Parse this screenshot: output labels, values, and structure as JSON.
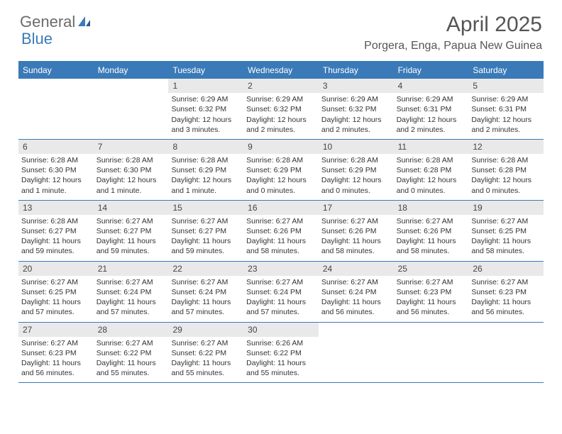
{
  "brand": {
    "text_a": "General",
    "text_b": "Blue"
  },
  "title": "April 2025",
  "location": "Porgera, Enga, Papua New Guinea",
  "colors": {
    "accent": "#3a7ab8",
    "header_text": "#ffffff",
    "day_bar_bg": "#e9e9e9",
    "text": "#333333",
    "title_color": "#555555"
  },
  "day_names": [
    "Sunday",
    "Monday",
    "Tuesday",
    "Wednesday",
    "Thursday",
    "Friday",
    "Saturday"
  ],
  "weeks": [
    [
      {
        "n": "",
        "empty": true
      },
      {
        "n": "",
        "empty": true
      },
      {
        "n": "1",
        "sunrise": "6:29 AM",
        "sunset": "6:32 PM",
        "daylight": "12 hours and 3 minutes."
      },
      {
        "n": "2",
        "sunrise": "6:29 AM",
        "sunset": "6:32 PM",
        "daylight": "12 hours and 2 minutes."
      },
      {
        "n": "3",
        "sunrise": "6:29 AM",
        "sunset": "6:32 PM",
        "daylight": "12 hours and 2 minutes."
      },
      {
        "n": "4",
        "sunrise": "6:29 AM",
        "sunset": "6:31 PM",
        "daylight": "12 hours and 2 minutes."
      },
      {
        "n": "5",
        "sunrise": "6:29 AM",
        "sunset": "6:31 PM",
        "daylight": "12 hours and 2 minutes."
      }
    ],
    [
      {
        "n": "6",
        "sunrise": "6:28 AM",
        "sunset": "6:30 PM",
        "daylight": "12 hours and 1 minute."
      },
      {
        "n": "7",
        "sunrise": "6:28 AM",
        "sunset": "6:30 PM",
        "daylight": "12 hours and 1 minute."
      },
      {
        "n": "8",
        "sunrise": "6:28 AM",
        "sunset": "6:29 PM",
        "daylight": "12 hours and 1 minute."
      },
      {
        "n": "9",
        "sunrise": "6:28 AM",
        "sunset": "6:29 PM",
        "daylight": "12 hours and 0 minutes."
      },
      {
        "n": "10",
        "sunrise": "6:28 AM",
        "sunset": "6:29 PM",
        "daylight": "12 hours and 0 minutes."
      },
      {
        "n": "11",
        "sunrise": "6:28 AM",
        "sunset": "6:28 PM",
        "daylight": "12 hours and 0 minutes."
      },
      {
        "n": "12",
        "sunrise": "6:28 AM",
        "sunset": "6:28 PM",
        "daylight": "12 hours and 0 minutes."
      }
    ],
    [
      {
        "n": "13",
        "sunrise": "6:28 AM",
        "sunset": "6:27 PM",
        "daylight": "11 hours and 59 minutes."
      },
      {
        "n": "14",
        "sunrise": "6:27 AM",
        "sunset": "6:27 PM",
        "daylight": "11 hours and 59 minutes."
      },
      {
        "n": "15",
        "sunrise": "6:27 AM",
        "sunset": "6:27 PM",
        "daylight": "11 hours and 59 minutes."
      },
      {
        "n": "16",
        "sunrise": "6:27 AM",
        "sunset": "6:26 PM",
        "daylight": "11 hours and 58 minutes."
      },
      {
        "n": "17",
        "sunrise": "6:27 AM",
        "sunset": "6:26 PM",
        "daylight": "11 hours and 58 minutes."
      },
      {
        "n": "18",
        "sunrise": "6:27 AM",
        "sunset": "6:26 PM",
        "daylight": "11 hours and 58 minutes."
      },
      {
        "n": "19",
        "sunrise": "6:27 AM",
        "sunset": "6:25 PM",
        "daylight": "11 hours and 58 minutes."
      }
    ],
    [
      {
        "n": "20",
        "sunrise": "6:27 AM",
        "sunset": "6:25 PM",
        "daylight": "11 hours and 57 minutes."
      },
      {
        "n": "21",
        "sunrise": "6:27 AM",
        "sunset": "6:24 PM",
        "daylight": "11 hours and 57 minutes."
      },
      {
        "n": "22",
        "sunrise": "6:27 AM",
        "sunset": "6:24 PM",
        "daylight": "11 hours and 57 minutes."
      },
      {
        "n": "23",
        "sunrise": "6:27 AM",
        "sunset": "6:24 PM",
        "daylight": "11 hours and 57 minutes."
      },
      {
        "n": "24",
        "sunrise": "6:27 AM",
        "sunset": "6:24 PM",
        "daylight": "11 hours and 56 minutes."
      },
      {
        "n": "25",
        "sunrise": "6:27 AM",
        "sunset": "6:23 PM",
        "daylight": "11 hours and 56 minutes."
      },
      {
        "n": "26",
        "sunrise": "6:27 AM",
        "sunset": "6:23 PM",
        "daylight": "11 hours and 56 minutes."
      }
    ],
    [
      {
        "n": "27",
        "sunrise": "6:27 AM",
        "sunset": "6:23 PM",
        "daylight": "11 hours and 56 minutes."
      },
      {
        "n": "28",
        "sunrise": "6:27 AM",
        "sunset": "6:22 PM",
        "daylight": "11 hours and 55 minutes."
      },
      {
        "n": "29",
        "sunrise": "6:27 AM",
        "sunset": "6:22 PM",
        "daylight": "11 hours and 55 minutes."
      },
      {
        "n": "30",
        "sunrise": "6:26 AM",
        "sunset": "6:22 PM",
        "daylight": "11 hours and 55 minutes."
      },
      {
        "n": "",
        "empty": true
      },
      {
        "n": "",
        "empty": true
      },
      {
        "n": "",
        "empty": true
      }
    ]
  ],
  "labels": {
    "sunrise_prefix": "Sunrise: ",
    "sunset_prefix": "Sunset: ",
    "daylight_prefix": "Daylight: "
  }
}
